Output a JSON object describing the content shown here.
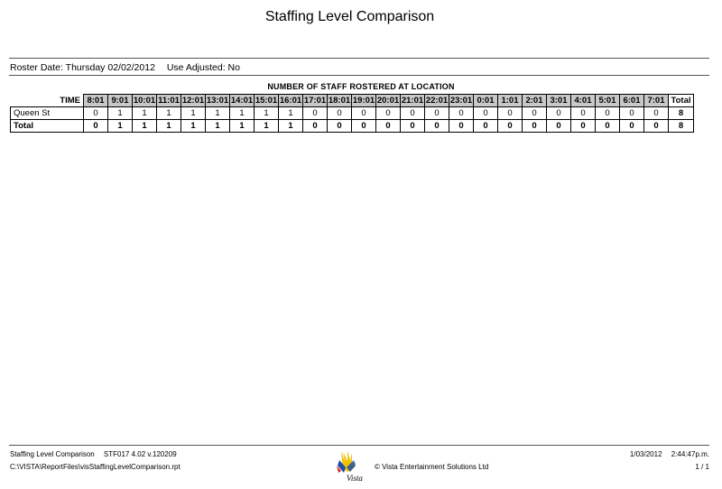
{
  "report": {
    "title": "Staffing Level Comparison",
    "roster_date": "Roster Date: Thursday 02/02/2012",
    "use_adjusted": "Use Adjusted: No",
    "section_title": "NUMBER OF STAFF ROSTERED AT LOCATION"
  },
  "table": {
    "time_label": "TIME",
    "slots": [
      "8:01",
      "9:01",
      "10:01",
      "11:01",
      "12:01",
      "13:01",
      "14:01",
      "15:01",
      "16:01",
      "17:01",
      "18:01",
      "19:01",
      "20:01",
      "21:01",
      "22:01",
      "23:01",
      "0:01",
      "1:01",
      "2:01",
      "3:01",
      "4:01",
      "5:01",
      "6:01",
      "7:01"
    ],
    "total_label": "Total",
    "rows": [
      {
        "label": "Queen St",
        "values": [
          "0",
          "1",
          "1",
          "1",
          "1",
          "1",
          "1",
          "1",
          "1",
          "0",
          "0",
          "0",
          "0",
          "0",
          "0",
          "0",
          "0",
          "0",
          "0",
          "0",
          "0",
          "0",
          "0",
          "0"
        ],
        "total": "8"
      },
      {
        "label": "Total",
        "values": [
          "0",
          "1",
          "1",
          "1",
          "1",
          "1",
          "1",
          "1",
          "1",
          "0",
          "0",
          "0",
          "0",
          "0",
          "0",
          "0",
          "0",
          "0",
          "0",
          "0",
          "0",
          "0",
          "0",
          "0"
        ],
        "total": "8"
      }
    ]
  },
  "footer": {
    "report_name": "Staffing Level Comparison",
    "report_code": "STF017 4.02 v.120209",
    "file_path": "C:\\VISTA\\ReportFiles\\visStaffingLevelComparison.rpt",
    "copyright": "© Vista Entertainment Solutions Ltd",
    "print_date": "1/03/2012",
    "print_time": "2:44:47p.m.",
    "page": "1 / 1",
    "logo_text": "Vista"
  },
  "colors": {
    "header_fill": "#c8c8c8",
    "logo_yellow": "#f2c200",
    "logo_blue": "#1f4fa8",
    "logo_red": "#d9261c"
  }
}
